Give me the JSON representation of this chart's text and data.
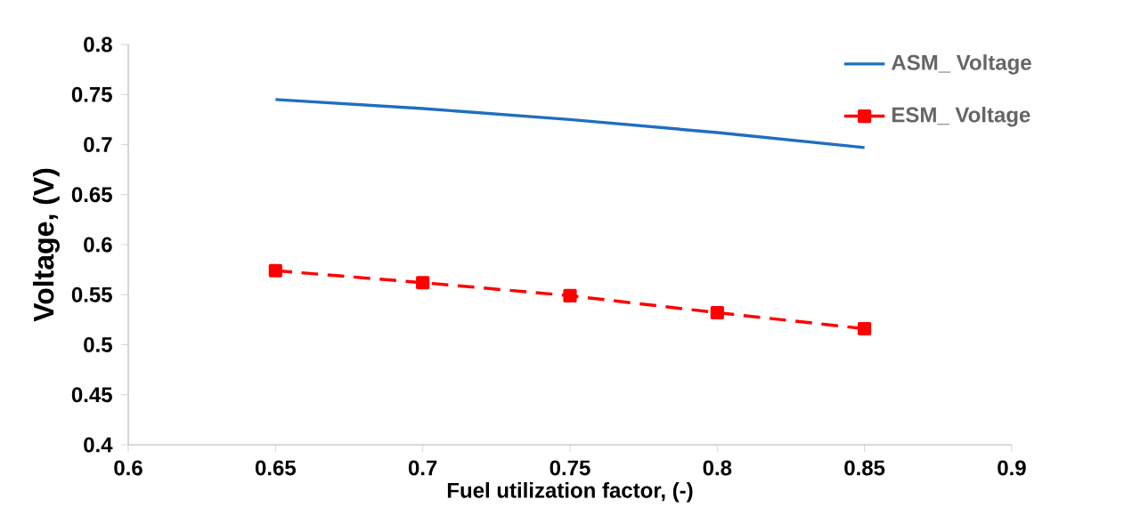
{
  "chart_data": {
    "type": "line",
    "xlabel": "Fuel utilization factor, (-)",
    "ylabel": "Voltage, (V)",
    "x": [
      0.65,
      0.7,
      0.75,
      0.8,
      0.85
    ],
    "series": [
      {
        "name": "ASM_ Voltage",
        "color": "#1f6fc0",
        "values": [
          0.745,
          0.736,
          0.725,
          0.712,
          0.697
        ],
        "marker": "none",
        "line_style": "solid"
      },
      {
        "name": "ESM_ Voltage",
        "color": "#ff0000",
        "values": [
          0.574,
          0.562,
          0.549,
          0.532,
          0.516
        ],
        "marker": "square",
        "line_style": "dashed"
      }
    ],
    "xlim": [
      0.6,
      0.9
    ],
    "xticks": [
      0.6,
      0.65,
      0.7,
      0.75,
      0.8,
      0.85,
      0.9
    ],
    "ylim": [
      0.4,
      0.8
    ],
    "yticks": [
      0.4,
      0.45,
      0.5,
      0.55,
      0.6,
      0.65,
      0.7,
      0.75,
      0.8
    ],
    "grid": false,
    "legend": "top right"
  }
}
